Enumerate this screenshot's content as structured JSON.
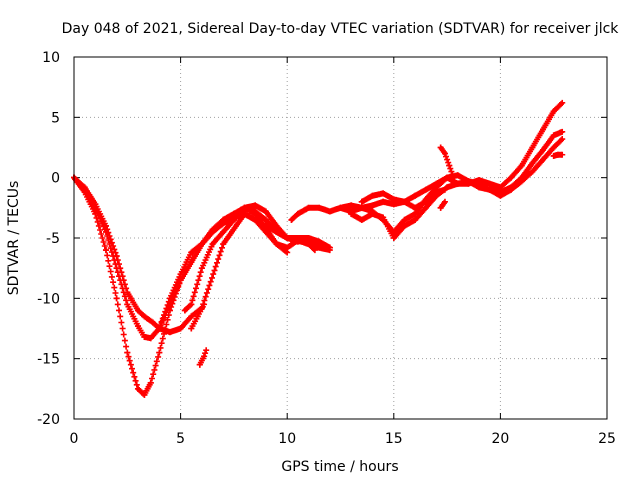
{
  "chart_data": {
    "type": "scatter",
    "title": "Day 048 of 2021, Sidereal Day-to-day VTEC variation (SDTVAR) for receiver jlck",
    "xlabel": "GPS time / hours",
    "ylabel": "SDTVAR / TECUs",
    "xlim": [
      0,
      25
    ],
    "ylim": [
      -20,
      10
    ],
    "xticks": [
      0,
      5,
      10,
      15,
      20,
      25
    ],
    "yticks": [
      -20,
      -15,
      -10,
      -5,
      0,
      5,
      10
    ],
    "xtick_labels": [
      "0",
      "5",
      "10",
      "15",
      "20",
      "25"
    ],
    "ytick_labels": [
      "-20",
      "-15",
      "-10",
      "-5",
      "0",
      "5",
      "10"
    ],
    "grid": true,
    "legend": "none",
    "marker": "plus",
    "color": "#ff0000",
    "series": [
      {
        "x": [
          0.0,
          0.5,
          1.0,
          1.5,
          2.0,
          2.5,
          3.0,
          3.3,
          3.7,
          4.0,
          4.5,
          5.0,
          5.5,
          6.0,
          7.0,
          8.0,
          9.0,
          10.0,
          11.0,
          12.0
        ],
        "y": [
          0.0,
          -0.8,
          -2.2,
          -4.0,
          -6.5,
          -9.5,
          -11.0,
          -11.5,
          -12.0,
          -12.5,
          -12.8,
          -12.5,
          -11.5,
          -10.8,
          -5.5,
          -3.0,
          -4.0,
          -5.0,
          -5.0,
          -5.8
        ]
      },
      {
        "x": [
          0.0,
          0.5,
          1.0,
          1.5,
          2.0,
          2.5,
          3.0,
          3.3,
          3.6,
          4.0,
          4.5,
          5.0,
          5.5,
          6.0,
          6.5,
          7.0,
          7.5,
          8.0,
          8.5,
          9.0,
          9.5,
          10.0,
          10.5,
          11.0,
          11.3
        ],
        "y": [
          0.0,
          -1.0,
          -2.5,
          -4.5,
          -7.5,
          -10.5,
          -12.3,
          -13.2,
          -13.3,
          -12.5,
          -10.5,
          -8.5,
          -7.0,
          -5.5,
          -4.5,
          -3.8,
          -3.3,
          -3.0,
          -3.5,
          -4.5,
          -5.5,
          -5.8,
          -5.2,
          -5.5,
          -6.0
        ]
      },
      {
        "x": [
          0.0,
          0.5,
          1.0,
          1.5,
          2.0,
          2.5,
          3.0,
          3.3,
          3.6,
          4.0,
          4.5,
          5.0,
          5.5,
          6.0,
          6.5,
          7.0,
          7.5,
          8.0,
          8.5,
          9.0,
          9.5,
          10.0
        ],
        "y": [
          0.0,
          -1.2,
          -3.0,
          -6.0,
          -10.0,
          -14.5,
          -17.5,
          -18.0,
          -17.0,
          -14.5,
          -11.0,
          -8.5,
          -7.0,
          -5.5,
          -4.5,
          -3.5,
          -3.0,
          -2.5,
          -3.0,
          -4.2,
          -5.5,
          -6.2
        ]
      },
      {
        "x": [
          4.0,
          4.5,
          5.0,
          5.5,
          6.0,
          6.5,
          7.0,
          7.5,
          8.0,
          8.5,
          9.0,
          9.5,
          10.0,
          10.5,
          11.0,
          11.5,
          12.0
        ],
        "y": [
          -12.5,
          -10.0,
          -8.0,
          -6.2,
          -5.5,
          -4.3,
          -3.5,
          -3.0,
          -2.5,
          -2.8,
          -3.5,
          -4.5,
          -5.0,
          -5.3,
          -5.0,
          -5.3,
          -5.8
        ]
      },
      {
        "x": [
          5.2,
          5.5,
          6.0,
          6.5,
          7.0,
          7.5,
          8.0,
          8.5,
          9.0,
          9.5,
          10.0,
          10.5,
          11.0,
          11.5,
          12.0
        ],
        "y": [
          -11.0,
          -10.5,
          -7.5,
          -5.5,
          -4.5,
          -3.5,
          -2.5,
          -2.3,
          -2.8,
          -4.0,
          -5.0,
          -5.2,
          -5.5,
          -5.8,
          -6.0
        ]
      },
      {
        "x": [
          5.5,
          5.8,
          6.1
        ],
        "y": [
          -12.5,
          -11.5,
          -10.5
        ]
      },
      {
        "x": [
          5.9,
          6.1,
          6.2
        ],
        "y": [
          -15.5,
          -14.8,
          -14.3
        ]
      },
      {
        "x": [
          10.2,
          10.5,
          11.0,
          11.5,
          12.0,
          12.5,
          13.0,
          13.5,
          14.0,
          14.5,
          15.0,
          15.5,
          16.0,
          16.5,
          17.0,
          17.5,
          18.0,
          18.5,
          19.0,
          19.5,
          20.0,
          20.5,
          21.0,
          21.5,
          22.0,
          22.5,
          22.9
        ],
        "y": [
          -3.5,
          -3.0,
          -2.5,
          -2.5,
          -2.8,
          -2.5,
          -2.3,
          -2.5,
          -2.3,
          -2.0,
          -2.2,
          -2.0,
          -1.5,
          -1.0,
          -0.5,
          0.0,
          -0.5,
          -0.5,
          -0.2,
          -0.5,
          -0.8,
          0.0,
          1.0,
          2.5,
          4.0,
          5.5,
          6.2
        ]
      },
      {
        "x": [
          12.5,
          13.0,
          13.5,
          14.0,
          14.5,
          15.0,
          15.5,
          16.0,
          16.5,
          17.0,
          17.5,
          18.0,
          18.5,
          19.0,
          19.5,
          20.0,
          20.5,
          21.0,
          21.5,
          22.0,
          22.5,
          22.9
        ],
        "y": [
          -2.5,
          -2.8,
          -2.5,
          -2.8,
          -3.5,
          -4.5,
          -3.5,
          -3.0,
          -1.8,
          -0.8,
          0.0,
          0.2,
          -0.3,
          -0.8,
          -1.0,
          -1.2,
          -0.8,
          0.0,
          1.2,
          2.3,
          3.5,
          3.8
        ]
      },
      {
        "x": [
          13.0,
          13.5,
          14.0,
          14.5,
          15.0,
          15.5,
          16.0,
          16.5,
          17.0,
          17.5,
          18.0,
          18.5,
          19.0,
          19.5,
          20.0,
          20.5,
          21.0,
          21.5,
          22.0,
          22.5,
          22.9
        ],
        "y": [
          -3.0,
          -3.5,
          -3.0,
          -3.3,
          -5.0,
          -4.0,
          -3.5,
          -2.5,
          -1.5,
          -0.8,
          -0.5,
          -0.3,
          -0.5,
          -1.0,
          -1.5,
          -1.0,
          -0.3,
          0.5,
          1.5,
          2.5,
          3.2
        ]
      },
      {
        "x": [
          13.5,
          14.0,
          14.5,
          15.0,
          15.5,
          16.0,
          16.5,
          17.0,
          17.4
        ],
        "y": [
          -2.0,
          -1.5,
          -1.3,
          -1.8,
          -2.0,
          -2.5,
          -2.0,
          -1.2,
          -1.0
        ]
      },
      {
        "x": [
          17.2,
          17.4,
          17.6,
          17.8
        ],
        "y": [
          2.5,
          2.0,
          1.0,
          0.0
        ]
      },
      {
        "x": [
          17.2,
          17.4
        ],
        "y": [
          -2.5,
          -2.0
        ]
      },
      {
        "x": [
          22.5,
          22.7,
          22.9
        ],
        "y": [
          1.8,
          1.9,
          1.9
        ]
      }
    ]
  }
}
